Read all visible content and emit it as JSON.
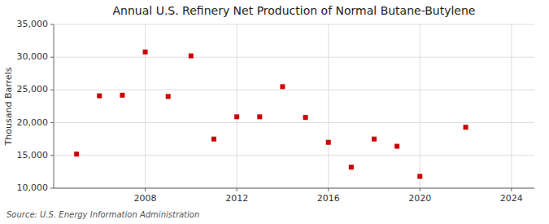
{
  "chart_data": {
    "type": "scatter",
    "title": "Annual U.S. Refinery Net Production of Normal Butane-Butylene",
    "ylabel": "Thousand Barrels",
    "source": "Source: U.S. Energy Information Administration",
    "x": [
      2005,
      2006,
      2007,
      2008,
      2009,
      2010,
      2011,
      2012,
      2013,
      2014,
      2015,
      2016,
      2017,
      2018,
      2019,
      2020,
      2022
    ],
    "values": [
      15200,
      24100,
      24200,
      30800,
      24000,
      30200,
      17500,
      20900,
      20900,
      25500,
      20800,
      17000,
      13200,
      17500,
      16400,
      11800,
      19300
    ],
    "color": "#cc0000",
    "marker": "square",
    "xlim": [
      2004,
      2025
    ],
    "ylim": [
      10000,
      35000
    ],
    "xticks": [
      2008,
      2012,
      2016,
      2020,
      2024
    ],
    "yticks": [
      {
        "value": 10000,
        "label": "10,000"
      },
      {
        "value": 15000,
        "label": "15,000"
      },
      {
        "value": 20000,
        "label": "20,000"
      },
      {
        "value": 25000,
        "label": "25,000"
      },
      {
        "value": 30000,
        "label": "30,000"
      },
      {
        "value": 35000,
        "label": "35,000"
      }
    ],
    "grid": true
  }
}
